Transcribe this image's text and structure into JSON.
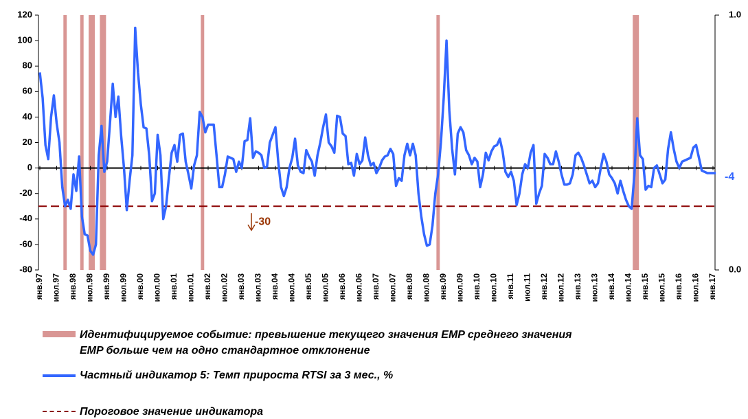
{
  "chart_data": {
    "type": "line",
    "categories": [
      "янв.97",
      null,
      null,
      null,
      null,
      null,
      "июл.97",
      null,
      null,
      null,
      null,
      null,
      "янв.98",
      null,
      null,
      null,
      null,
      null,
      "июл.98",
      null,
      null,
      null,
      null,
      null,
      "янв.99",
      null,
      null,
      null,
      null,
      null,
      "июл.99",
      null,
      null,
      null,
      null,
      null,
      "янв.00",
      null,
      null,
      null,
      null,
      null,
      "июл.00",
      null,
      null,
      null,
      null,
      null,
      "янв.01",
      null,
      null,
      null,
      null,
      null,
      "июл.01",
      null,
      null,
      null,
      null,
      null,
      "янв.02",
      null,
      null,
      null,
      null,
      null,
      "июл.02",
      null,
      null,
      null,
      null,
      null,
      "янв.03",
      null,
      null,
      null,
      null,
      null,
      "июл.03",
      null,
      null,
      null,
      null,
      null,
      "янв.04",
      null,
      null,
      null,
      null,
      null,
      "июл.04",
      null,
      null,
      null,
      null,
      null,
      "янв.05",
      null,
      null,
      null,
      null,
      null,
      "июл.05",
      null,
      null,
      null,
      null,
      null,
      "янв.06",
      null,
      null,
      null,
      null,
      null,
      "июл.06",
      null,
      null,
      null,
      null,
      null,
      "янв.07",
      null,
      null,
      null,
      null,
      null,
      "июл.07",
      null,
      null,
      null,
      null,
      null,
      "янв.08",
      null,
      null,
      null,
      null,
      null,
      "июл.08",
      null,
      null,
      null,
      null,
      null,
      "янв.09",
      null,
      null,
      null,
      null,
      null,
      "июл.09",
      null,
      null,
      null,
      null,
      null,
      "янв.10",
      null,
      null,
      null,
      null,
      null,
      "июл.10",
      null,
      null,
      null,
      null,
      null,
      "янв.11",
      null,
      null,
      null,
      null,
      null,
      "июл.11",
      null,
      null,
      null,
      null,
      null,
      "янв.12",
      null,
      null,
      null,
      null,
      null,
      "июл.12",
      null,
      null,
      null,
      null,
      null,
      "янв.13",
      null,
      null,
      null,
      null,
      null,
      "июл.13",
      null,
      null,
      null,
      null,
      null,
      "янв.14",
      null,
      null,
      null,
      null,
      null,
      "июл.14",
      null,
      null,
      null,
      null,
      null,
      "янв.15",
      null,
      null,
      null,
      null,
      null,
      "июл.15",
      null,
      null,
      null,
      null,
      null,
      "янв.16",
      null,
      null,
      null,
      null,
      null,
      "июл.16",
      null,
      null,
      null,
      null,
      null,
      "янв.17",
      null
    ],
    "series": [
      {
        "name": "Идентифицируемое событие: превышение текущего значения EMP среднего значения EMP больше чем на одно стандартное отклонение",
        "color": "#d99694",
        "type": "bar",
        "axis": "y2",
        "values": [
          0,
          0,
          0,
          0,
          0,
          0,
          0,
          0,
          0,
          1,
          0,
          0,
          0,
          0,
          0,
          1,
          0,
          0,
          1,
          1,
          0,
          0,
          1,
          1,
          0,
          0,
          0,
          0,
          0,
          0,
          0,
          0,
          0,
          0,
          0,
          0,
          0,
          0,
          0,
          0,
          0,
          0,
          0,
          0,
          0,
          0,
          0,
          0,
          0,
          0,
          0,
          0,
          0,
          0,
          0,
          0,
          0,
          0,
          1,
          0,
          0,
          0,
          0,
          0,
          0,
          0,
          0,
          0,
          0,
          0,
          0,
          0,
          0,
          0,
          0,
          0,
          0,
          0,
          0,
          0,
          0,
          0,
          0,
          0,
          0,
          0,
          0,
          0,
          0,
          0,
          0,
          0,
          0,
          0,
          0,
          0,
          0,
          0,
          0,
          0,
          0,
          0,
          0,
          0,
          0,
          0,
          0,
          0,
          0,
          0,
          0,
          0,
          0,
          0,
          0,
          0,
          0,
          0,
          0,
          0,
          0,
          0,
          0,
          0,
          0,
          0,
          0,
          0,
          0,
          0,
          0,
          0,
          0,
          0,
          0,
          0,
          0,
          0,
          0,
          0,
          0,
          0,
          1,
          0,
          0,
          0,
          0,
          0,
          0,
          0,
          0,
          0,
          0,
          0,
          0,
          0,
          0,
          0,
          0,
          0,
          0,
          0,
          0,
          0,
          0,
          0,
          0,
          0,
          0,
          0,
          0,
          0,
          0,
          0,
          0,
          0,
          0,
          0,
          0,
          0,
          0,
          0,
          0,
          0,
          0,
          0,
          0,
          0,
          0,
          0,
          0,
          0,
          0,
          0,
          0,
          0,
          0,
          0,
          0,
          0,
          0,
          0,
          0,
          0,
          0,
          0,
          0,
          0,
          0,
          0,
          0,
          0,
          1,
          1,
          0,
          0,
          0,
          0,
          0,
          0,
          0,
          0,
          0,
          0,
          0,
          0,
          0,
          0,
          0,
          0,
          0,
          0,
          0,
          0,
          0,
          0,
          0,
          0,
          0,
          0,
          0,
          0
        ]
      },
      {
        "name": "Частный индикатор 5: Темп прироста RTSI за 3 мес., %",
        "color": "#3366ff",
        "values": [
          75,
          55,
          18,
          7,
          40,
          57,
          35,
          20,
          -15,
          -30,
          -25,
          -32,
          -5,
          -18,
          9,
          -38,
          -52,
          -53,
          -65,
          -68,
          -60,
          10,
          33,
          -3,
          5,
          35,
          66,
          40,
          56,
          25,
          0,
          -33,
          -10,
          10,
          110,
          75,
          50,
          32,
          31,
          10,
          -26,
          -20,
          26,
          10,
          -40,
          -30,
          -8,
          12,
          18,
          5,
          26,
          27,
          5,
          -5,
          -16,
          2,
          10,
          44,
          40,
          28,
          34,
          34,
          34,
          10,
          -15,
          -15,
          -5,
          9,
          8,
          7,
          -3,
          5,
          0,
          21,
          22,
          39,
          8,
          13,
          12,
          10,
          0,
          1,
          20,
          26,
          32,
          5,
          -15,
          -22,
          -15,
          0,
          8,
          23,
          2,
          -3,
          -4,
          14,
          9,
          5,
          -6,
          10,
          20,
          32,
          42,
          20,
          17,
          12,
          41,
          40,
          27,
          25,
          3,
          4,
          -6,
          11,
          3,
          6,
          24,
          10,
          2,
          4,
          -4,
          0,
          6,
          9,
          10,
          15,
          11,
          -14,
          -8,
          -10,
          10,
          19,
          10,
          19,
          10,
          -20,
          -38,
          -52,
          -61,
          -60,
          -45,
          -20,
          -5,
          20,
          55,
          100,
          45,
          15,
          -5,
          27,
          32,
          28,
          14,
          10,
          3,
          8,
          5,
          -15,
          -5,
          12,
          6,
          13,
          17,
          18,
          23,
          13,
          -3,
          -7,
          -3,
          -10,
          -29,
          -20,
          -5,
          3,
          0,
          12,
          18,
          -28,
          -20,
          -14,
          11,
          8,
          3,
          3,
          13,
          5,
          -5,
          -13,
          -13,
          -12,
          -5,
          10,
          12,
          8,
          2,
          -5,
          -12,
          -10,
          -15,
          -12,
          0,
          11,
          5,
          -5,
          -8,
          -12,
          -20,
          -10,
          -18,
          -25,
          -30,
          -32,
          -5,
          39,
          10,
          7,
          -17,
          -14,
          -15,
          0,
          2,
          -5,
          -12,
          -9,
          15,
          28,
          15,
          5,
          0,
          5,
          6,
          7,
          8,
          16,
          18,
          8,
          -2,
          -3,
          -4,
          -4,
          -4,
          -4
        ]
      }
    ],
    "threshold": {
      "name": "Пороговое значение индикатора",
      "value": -30,
      "color": "#8b0000"
    },
    "ylim": [
      -80,
      120
    ],
    "yticks": [
      -80,
      -60,
      -40,
      -20,
      0,
      20,
      40,
      60,
      80,
      100,
      120
    ],
    "y2lim": [
      0,
      1
    ],
    "y2ticks": [
      {
        "value": 0,
        "label": "0.0"
      },
      {
        "value": 1,
        "label": "1.0"
      }
    ]
  }
}
